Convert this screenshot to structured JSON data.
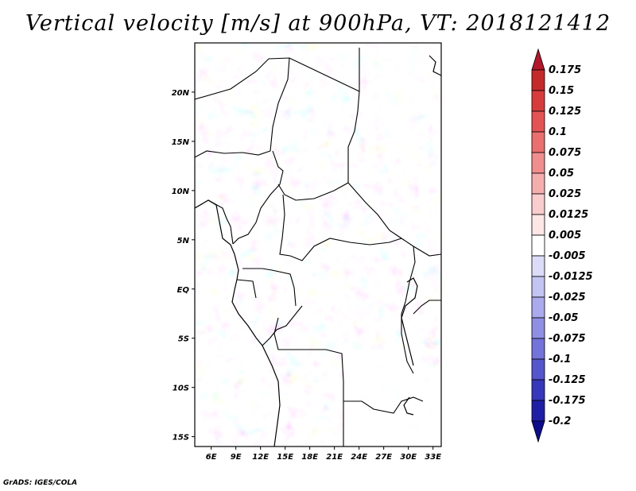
{
  "title": "Vertical velocity [m/s] at 900hPa, VT: 2018121412",
  "credit": "GrADS: IGES/COLA",
  "map": {
    "lon_ticks": [
      "6E",
      "9E",
      "12E",
      "15E",
      "18E",
      "21E",
      "24E",
      "27E",
      "30E",
      "33E"
    ],
    "lon_values": [
      6,
      9,
      12,
      15,
      18,
      21,
      24,
      27,
      30,
      33
    ],
    "lat_ticks": [
      "20N",
      "15N",
      "10N",
      "5N",
      "EQ",
      "5S",
      "10S",
      "15S"
    ],
    "lat_values": [
      20,
      15,
      10,
      5,
      0,
      -5,
      -10,
      -15
    ],
    "lon_range": [
      4,
      34
    ],
    "lat_range": [
      -16,
      25
    ]
  },
  "colorbar": {
    "levels": [
      "0.175",
      "0.15",
      "0.125",
      "0.1",
      "0.075",
      "0.05",
      "0.025",
      "0.0125",
      "0.005",
      "-0.005",
      "-0.0125",
      "-0.025",
      "-0.05",
      "-0.075",
      "-0.1",
      "-0.125",
      "-0.175",
      "-0.2"
    ],
    "colors": [
      "#b2182b",
      "#c42a2a",
      "#d73c3c",
      "#e45454",
      "#ea6f6f",
      "#f08e8e",
      "#f5aeae",
      "#f9cdcd",
      "#fde6e6",
      "#ffffff",
      "#dcdcf8",
      "#c4c4f2",
      "#aaaaec",
      "#8f8fe4",
      "#7373da",
      "#5555cc",
      "#3737bb",
      "#1f1fa6",
      "#0d0d8c"
    ]
  }
}
